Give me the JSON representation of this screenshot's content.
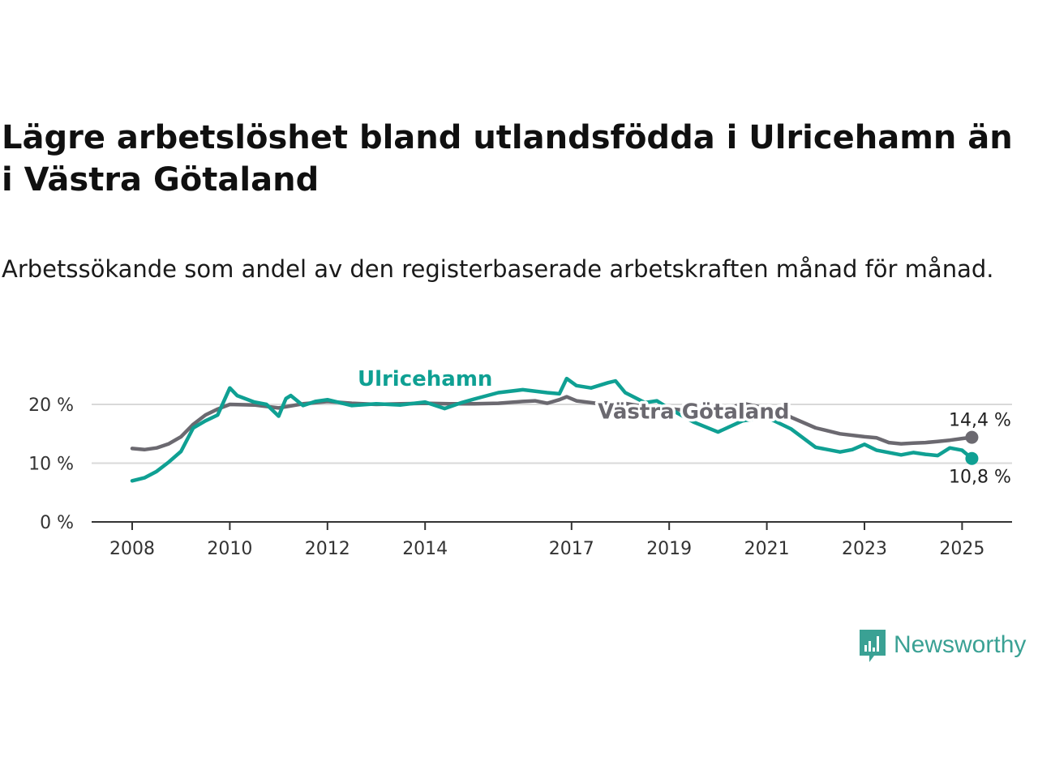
{
  "title": "Lägre arbetslöshet bland utlandsfödda i Ulricehamn än i Västra Götaland",
  "subtitle": "Arbetssökande som andel av den registerbaserade arbetskraften månad för månad.",
  "brand": {
    "name": "Newsworthy",
    "icon": "newsworthy-logo-icon",
    "color": "#3aa194"
  },
  "chart_data": {
    "type": "line",
    "title": "Lägre arbetslöshet bland utlandsfödda i Ulricehamn än i Västra Götaland",
    "subtitle": "Arbetssökande som andel av den registerbaserade arbetskraften månad för månad.",
    "xlabel": "",
    "ylabel": "",
    "xlim": [
      2007.85,
      2026.0
    ],
    "ylim": [
      0,
      20
    ],
    "x_ticks": [
      2008,
      2010,
      2012,
      2014,
      2017,
      2019,
      2021,
      2023,
      2025
    ],
    "x_tick_labels": [
      "2008",
      "2010",
      "2012",
      "2014",
      "2017",
      "2019",
      "2021",
      "2023",
      "2025"
    ],
    "y_ticks": [
      0,
      10,
      20
    ],
    "y_tick_labels": [
      "0 %",
      "10 %",
      "20 %"
    ],
    "grid": true,
    "legend": "direct labels on lines",
    "series": [
      {
        "name": "Ulricehamn",
        "color": "#0fa093",
        "x": [
          2008.0,
          2008.25,
          2008.5,
          2008.75,
          2009.0,
          2009.25,
          2009.5,
          2009.75,
          2010.0,
          2010.15,
          2010.5,
          2010.75,
          2011.0,
          2011.15,
          2011.25,
          2011.5,
          2011.75,
          2012.0,
          2012.5,
          2013.0,
          2013.5,
          2014.0,
          2014.4,
          2014.75,
          2015.0,
          2015.5,
          2016.0,
          2016.5,
          2016.75,
          2016.9,
          2017.1,
          2017.4,
          2017.75,
          2017.9,
          2018.1,
          2018.5,
          2018.75,
          2019.0,
          2019.5,
          2020.0,
          2020.5,
          2021.0,
          2021.5,
          2022.0,
          2022.5,
          2022.75,
          2023.0,
          2023.25,
          2023.5,
          2023.75,
          2024.0,
          2024.25,
          2024.5,
          2024.75,
          2025.0,
          2025.2
        ],
        "values": [
          7.0,
          7.5,
          8.6,
          10.2,
          12.0,
          16.0,
          17.2,
          18.2,
          22.8,
          21.5,
          20.4,
          20.0,
          18.0,
          21.0,
          21.5,
          19.8,
          20.5,
          20.8,
          19.8,
          20.1,
          19.9,
          20.4,
          19.3,
          20.3,
          20.9,
          22.0,
          22.5,
          22.0,
          21.8,
          24.4,
          23.2,
          22.8,
          23.7,
          24.0,
          22.0,
          20.3,
          20.6,
          19.3,
          17.0,
          15.3,
          17.2,
          17.8,
          15.8,
          12.7,
          11.9,
          12.3,
          13.2,
          12.2,
          11.8,
          11.4,
          11.8,
          11.5,
          11.3,
          12.6,
          12.2,
          10.8
        ]
      },
      {
        "name": "Västra Götaland",
        "color": "#6b6970",
        "x": [
          2008.0,
          2008.25,
          2008.5,
          2008.75,
          2009.0,
          2009.25,
          2009.5,
          2009.75,
          2010.0,
          2010.5,
          2011.0,
          2011.5,
          2012.0,
          2012.5,
          2013.0,
          2013.5,
          2014.0,
          2014.5,
          2015.0,
          2015.5,
          2016.0,
          2016.25,
          2016.5,
          2016.75,
          2016.9,
          2017.1,
          2017.5,
          2018.0,
          2018.5,
          2019.0,
          2019.5,
          2020.0,
          2020.5,
          2021.0,
          2021.25,
          2021.5,
          2022.0,
          2022.5,
          2023.0,
          2023.25,
          2023.5,
          2023.75,
          2024.0,
          2024.25,
          2024.5,
          2024.75,
          2025.0,
          2025.2
        ],
        "values": [
          12.5,
          12.3,
          12.6,
          13.3,
          14.5,
          16.6,
          18.2,
          19.2,
          20.0,
          19.9,
          19.4,
          20.1,
          20.5,
          20.2,
          20.0,
          20.1,
          20.2,
          20.1,
          20.1,
          20.2,
          20.5,
          20.6,
          20.2,
          20.8,
          21.3,
          20.6,
          20.2,
          20.3,
          19.6,
          19.3,
          18.8,
          18.5,
          20.2,
          19.3,
          19.0,
          17.8,
          16.0,
          15.0,
          14.5,
          14.3,
          13.5,
          13.3,
          13.4,
          13.5,
          13.7,
          13.9,
          14.2,
          14.4
        ]
      }
    ],
    "series_labels": [
      {
        "text": "Ulricehamn",
        "x": 2014.0,
        "y": 23.2,
        "color": "#0fa093"
      },
      {
        "text": "Västra Götaland",
        "x": 2019.5,
        "y": 17.6,
        "color": "#6b6970"
      }
    ],
    "end_labels": [
      {
        "text": "14,4 %",
        "x": 2025.2,
        "y": 14.4,
        "series": "Västra Götaland"
      },
      {
        "text": "10,8 %",
        "x": 2025.2,
        "y": 10.8,
        "series": "Ulricehamn"
      }
    ]
  }
}
